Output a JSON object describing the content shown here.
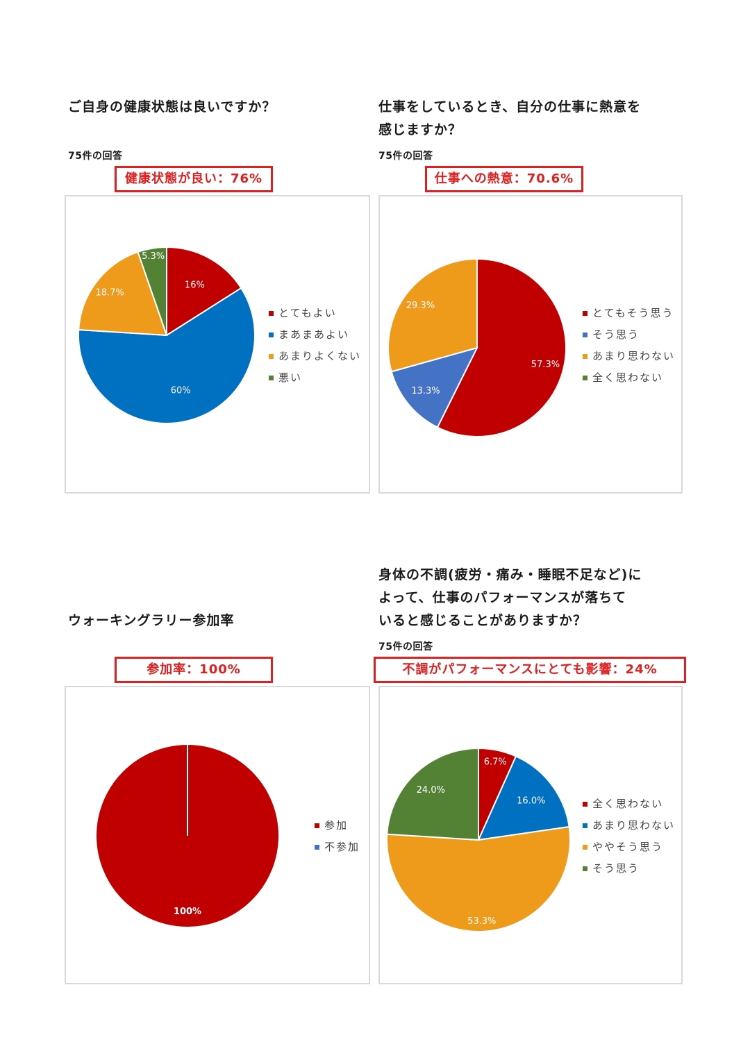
{
  "palette": {
    "dark_red": "#C00000",
    "blue": "#0070C0",
    "orange": "#EE9A1A",
    "green": "#548235",
    "callout_red": "#E02020"
  },
  "panels": [
    {
      "question": "ご自身の健康状態は良いですか？",
      "count": "75件の回答",
      "callout": "健康状態が良い：76%"
    },
    {
      "question": "仕事をしているとき、自分の仕事に熱意を\n感じますか？",
      "count": "75件の回答",
      "callout": "仕事への熱意：70.6%"
    },
    {
      "question": "ウォーキングラリー参加率",
      "count": "",
      "callout": "参加率：100%"
    },
    {
      "question": "身体の不調(疲労・痛み・睡眠不足など)に\nよって、仕事のパフォーマンスが落ちて\nいると感じることがありますか？",
      "count": "75件の回答",
      "callout": "不調がパフォーマンスにとても影響：24%"
    }
  ],
  "chart_data": [
    {
      "type": "pie",
      "categories": [
        "とてもよい",
        "まあまあよい",
        "あまりよくない",
        "悪い"
      ],
      "values": [
        16,
        60,
        18.7,
        5.3
      ],
      "labels": [
        "16%",
        "60%",
        "18.7%",
        "5.3%"
      ],
      "colors": [
        "#C00000",
        "#0070C0",
        "#EE9A1A",
        "#548235"
      ],
      "legend": "right"
    },
    {
      "type": "pie",
      "categories": [
        "とてもそう思う",
        "そう思う",
        "あまり思わない",
        "全く思わない"
      ],
      "values": [
        57.3,
        13.3,
        29.3,
        0
      ],
      "labels": [
        "57.3%",
        "13.3%",
        "29.3%",
        ""
      ],
      "colors": [
        "#C00000",
        "#4472C4",
        "#EE9A1A",
        "#548235"
      ],
      "legend": "right"
    },
    {
      "type": "pie",
      "categories": [
        "参加",
        "不参加"
      ],
      "values": [
        100,
        0
      ],
      "labels": [
        "100%",
        ""
      ],
      "colors": [
        "#C00000",
        "#4472C4"
      ],
      "legend": "right"
    },
    {
      "type": "pie",
      "categories": [
        "全く思わない",
        "あまり思わない",
        "ややそう思う",
        "そう思う"
      ],
      "values": [
        6.7,
        16.0,
        53.3,
        24.0
      ],
      "labels": [
        "6.7%",
        "16.0%",
        "53.3%",
        "24.0%"
      ],
      "colors": [
        "#C00000",
        "#0070C0",
        "#EE9A1A",
        "#548235"
      ],
      "legend": "right"
    }
  ]
}
